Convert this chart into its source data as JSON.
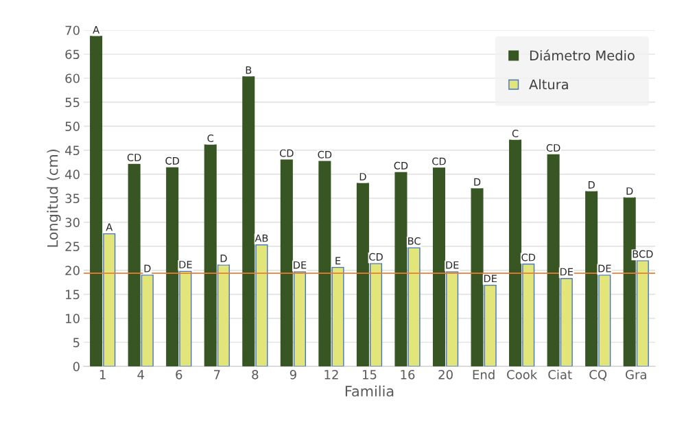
{
  "chart_data": {
    "type": "bar",
    "xlabel": "Familia",
    "ylabel": "Longitud (cm)",
    "categories": [
      "1",
      "4",
      "6",
      "7",
      "8",
      "9",
      "12",
      "15",
      "16",
      "20",
      "End",
      "Cook",
      "Ciat",
      "CQ",
      "Gra"
    ],
    "series": [
      {
        "name": "Diámetro Medio",
        "color": "#375623",
        "values": [
          68.7,
          42.1,
          41.4,
          46.1,
          60.3,
          43.0,
          42.7,
          38.1,
          40.4,
          41.3,
          37.0,
          47.1,
          44.1,
          36.4,
          35.1
        ],
        "value_labels": [
          "A",
          "CD",
          "CD",
          "C",
          "B",
          "CD",
          "CD",
          "D",
          "CD",
          "CD",
          "D",
          "C",
          "CD",
          "D",
          "D"
        ]
      },
      {
        "name": "Altura",
        "color": "#e2e67a",
        "values": [
          27.6,
          19.0,
          19.8,
          21.1,
          25.3,
          19.7,
          20.6,
          21.4,
          24.7,
          19.7,
          16.9,
          21.3,
          18.3,
          19.0,
          22.0
        ],
        "value_labels": [
          "A",
          "D",
          "DE",
          "D",
          "AB",
          "DE",
          "E",
          "CD",
          "BC",
          "DE",
          "DE",
          "CD",
          "DE",
          "DE",
          "BCD"
        ]
      }
    ],
    "ylim": [
      0,
      70
    ],
    "yticks": [
      0,
      5,
      10,
      15,
      20,
      25,
      30,
      35,
      40,
      45,
      50,
      55,
      60,
      65,
      70
    ],
    "ref_lines": [
      {
        "axis": "y",
        "value": 19.4,
        "color": "#ed7d31"
      }
    ],
    "grid": "y",
    "legend": "top right"
  }
}
